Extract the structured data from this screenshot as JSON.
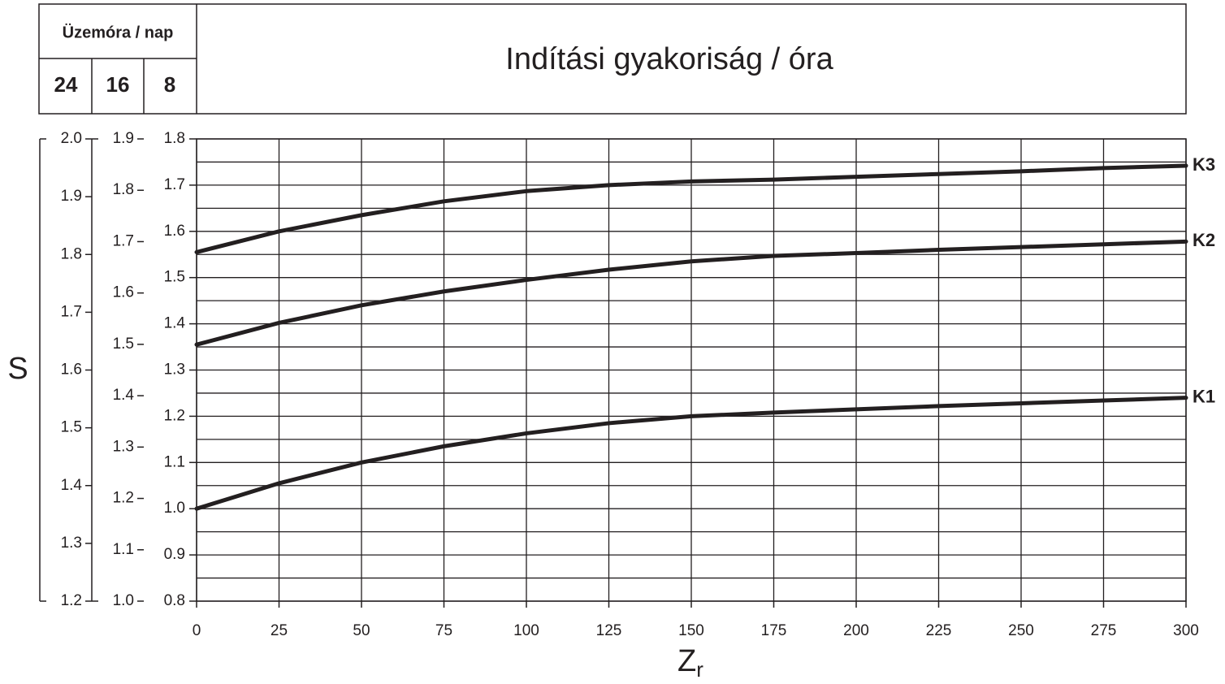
{
  "chart_data": {
    "type": "line",
    "title": "Indítási gyakoriság / óra",
    "header_label": "Üzemóra / nap",
    "main_axis_label": "8",
    "ylabel": "S",
    "xlabel": "Z",
    "xlabel_sub": "r",
    "x": [
      0,
      25,
      50,
      75,
      100,
      125,
      150,
      175,
      200,
      225,
      250,
      275,
      300
    ],
    "xlim": [
      0,
      300
    ],
    "xticks": [
      0,
      25,
      50,
      75,
      100,
      125,
      150,
      175,
      200,
      225,
      250,
      275,
      300
    ],
    "ylim": [
      0.8,
      1.8
    ],
    "yticks": [
      0.8,
      0.9,
      {
        "value": 1,
        "label": "1.0"
      },
      1.1,
      1.2,
      1.3,
      1.4,
      1.5,
      1.6,
      1.7,
      1.8
    ],
    "extra_y_axes": [
      {
        "label": "24",
        "ylim": [
          1.2,
          2
        ],
        "yticks": [
          1.2,
          1.3,
          1.4,
          1.5,
          1.6,
          1.7,
          1.8,
          1.9,
          {
            "value": 2,
            "label": "2.0"
          }
        ]
      },
      {
        "label": "16",
        "ylim": [
          1,
          1.9
        ],
        "yticks": [
          {
            "value": 1,
            "label": "1.0"
          },
          1.1,
          1.2,
          1.3,
          1.4,
          1.5,
          1.6,
          1.7,
          1.8,
          1.9
        ]
      }
    ],
    "grid": true,
    "series": [
      {
        "name": "K3",
        "color": "#231f20",
        "values": [
          1.555,
          1.6,
          1.635,
          1.665,
          1.687,
          1.7,
          1.708,
          1.712,
          1.718,
          1.724,
          1.73,
          1.737,
          1.742
        ]
      },
      {
        "name": "K2",
        "color": "#231f20",
        "values": [
          1.355,
          1.402,
          1.44,
          1.47,
          1.495,
          1.517,
          1.535,
          1.547,
          1.553,
          1.56,
          1.566,
          1.572,
          1.578
        ]
      },
      {
        "name": "K1",
        "color": "#231f20",
        "values": [
          1.0,
          1.055,
          1.1,
          1.135,
          1.163,
          1.185,
          1.2,
          1.208,
          1.215,
          1.222,
          1.228,
          1.234,
          1.24
        ]
      }
    ]
  }
}
